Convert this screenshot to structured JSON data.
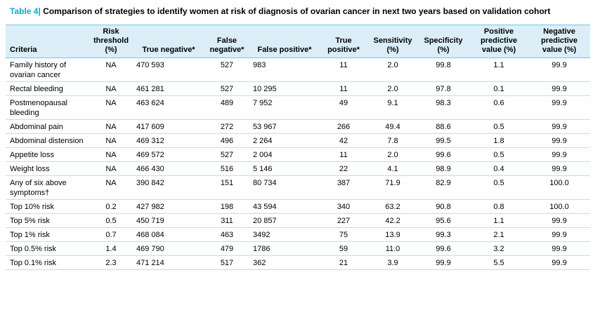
{
  "title": {
    "label": "Table 4",
    "separator": "|",
    "text": "Comparison of strategies to identify women at risk of diagnosis of ovarian cancer in next two years based on validation cohort"
  },
  "columns": [
    "Criteria",
    "Risk threshold (%)",
    "True negative*",
    "False negative*",
    "False positive*",
    "True positive*",
    "Sensitivity (%)",
    "Specificity (%)",
    "Positive predictive value (%)",
    "Negative predictive value (%)"
  ],
  "rows": [
    [
      "Family history of ovarian cancer",
      "NA",
      "470 593",
      "527",
      "983",
      "11",
      "2.0",
      "99.8",
      "1.1",
      "99.9"
    ],
    [
      "Rectal bleeding",
      "NA",
      "461 281",
      "527",
      "10 295",
      "11",
      "2.0",
      "97.8",
      "0.1",
      "99.9"
    ],
    [
      "Postmenopausal bleeding",
      "NA",
      "463 624",
      "489",
      "7 952",
      "49",
      "9.1",
      "98.3",
      "0.6",
      "99.9"
    ],
    [
      "Abdominal pain",
      "NA",
      "417 609",
      "272",
      "53 967",
      "266",
      "49.4",
      "88.6",
      "0.5",
      "99.9"
    ],
    [
      "Abdominal distension",
      "NA",
      "469 312",
      "496",
      "2 264",
      "42",
      "7.8",
      "99.5",
      "1.8",
      "99.9"
    ],
    [
      "Appetite loss",
      "NA",
      "469 572",
      "527",
      "2 004",
      "11",
      "2.0",
      "99.6",
      "0.5",
      "99.9"
    ],
    [
      "Weight loss",
      "NA",
      "466 430",
      "516",
      "5 146",
      "22",
      "4.1",
      "98.9",
      "0.4",
      "99.9"
    ],
    [
      "Any of six above symptoms†",
      "NA",
      "390 842",
      "151",
      "80 734",
      "387",
      "71.9",
      "82.9",
      "0.5",
      "100.0"
    ],
    [
      "Top 10% risk",
      "0.2",
      "427 982",
      "198",
      "43 594",
      "340",
      "63.2",
      "90.8",
      "0.8",
      "100.0"
    ],
    [
      "Top 5% risk",
      "0.5",
      "450 719",
      "311",
      "20 857",
      "227",
      "42.2",
      "95.6",
      "1.1",
      "99.9"
    ],
    [
      "Top 1% risk",
      "0.7",
      "468 084",
      "463",
      "3492",
      "75",
      "13.9",
      "99.3",
      "2.1",
      "99.9"
    ],
    [
      "Top 0.5% risk",
      "1.4",
      "469 790",
      "479",
      "1786",
      "59",
      "11.0",
      "99.6",
      "3.2",
      "99.9"
    ],
    [
      "Top 0.1% risk",
      "2.3",
      "471 214",
      "517",
      "362",
      "21",
      "3.9",
      "99.9",
      "5.5",
      "99.9"
    ]
  ],
  "colors": {
    "accent": "#1aa3c8",
    "header_bg": "#dbeef7",
    "rule": "#b9dff0"
  }
}
